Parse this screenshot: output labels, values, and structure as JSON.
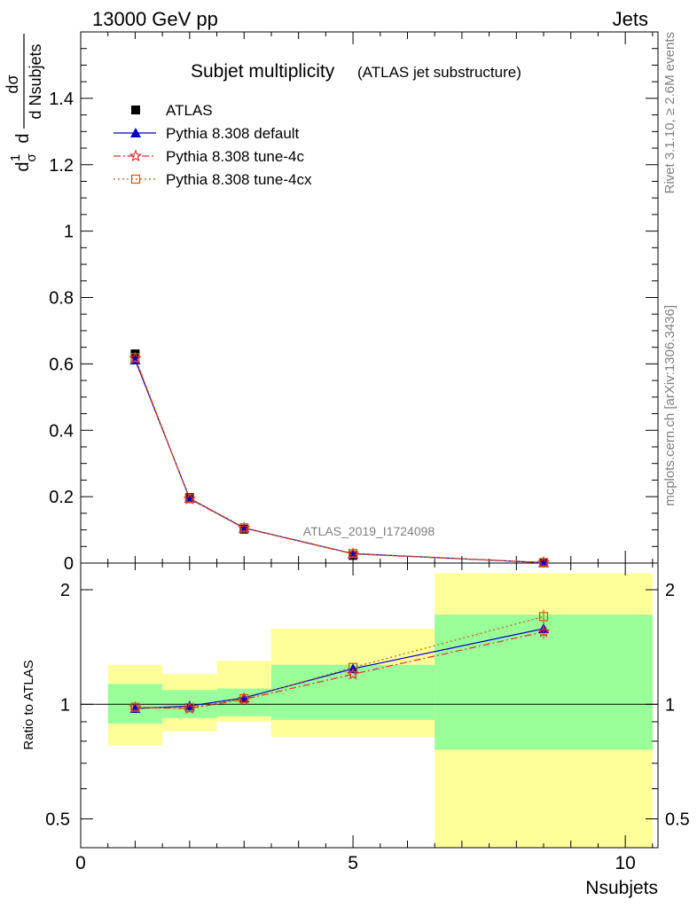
{
  "header": {
    "left": "13000 GeV pp",
    "right": "Jets"
  },
  "title": {
    "main": "Subjet multiplicity",
    "sub": "(ATLAS jet substructure)"
  },
  "watermark": "ATLAS_2019_I1724098",
  "side_text": {
    "rivet": "Rivet 3.1.10, ≥ 2.6M events",
    "mcplots": "mcplots.cern.ch [arXiv:1306.3436]"
  },
  "ylabel_main": {
    "num": "dσ",
    "den": "d Nsubjets",
    "pre_num": "1",
    "pre_den": "σ",
    "d": "d"
  },
  "ylabel_ratio": "Ratio to ATLAS",
  "xlabel": "Nsubjets",
  "main_ticks": [
    "0",
    "0.2",
    "0.4",
    "0.6",
    "0.8",
    "1",
    "1.2",
    "1.4"
  ],
  "ratio_ticks": [
    "0.5",
    "1",
    "2"
  ],
  "x_ticks": [
    "0",
    "5",
    "10"
  ],
  "legend": [
    {
      "label": "ATLAS",
      "color": "#000000",
      "marker": "square-filled"
    },
    {
      "label": "Pythia 8.308 default",
      "color": "#0000cc",
      "marker": "triangle-filled"
    },
    {
      "label": "Pythia 8.308 tune-4c",
      "color": "#e03030",
      "marker": "star"
    },
    {
      "label": "Pythia 8.308 tune-4cx",
      "color": "#cc5500",
      "marker": "square-open"
    }
  ],
  "chart_data": {
    "type": "line",
    "xlabel": "Nsubjets",
    "xlim": [
      0,
      10.6
    ],
    "main_ylim": [
      0,
      1.6
    ],
    "ratio_ylim": [
      0.42,
      2.35
    ],
    "ratio_scale": "log",
    "x": [
      1,
      2,
      3,
      5,
      8.5
    ],
    "bins": [
      [
        0.5,
        1.5
      ],
      [
        1.5,
        2.5
      ],
      [
        2.5,
        3.5
      ],
      [
        3.5,
        6.5
      ],
      [
        6.5,
        10.5
      ]
    ],
    "data": {
      "name": "ATLAS",
      "values": [
        0.63,
        0.197,
        0.102,
        0.023,
        0.0009
      ]
    },
    "series": [
      {
        "name": "Pythia 8.308 default",
        "values": [
          0.612,
          0.195,
          0.106,
          0.0283,
          0.0014
        ],
        "ratio": [
          0.975,
          0.99,
          1.04,
          1.24,
          1.58
        ]
      },
      {
        "name": "Pythia 8.308 tune-4c",
        "values": [
          0.617,
          0.193,
          0.105,
          0.0276,
          0.0014
        ],
        "ratio": [
          0.98,
          0.975,
          1.03,
          1.2,
          1.55
        ]
      },
      {
        "name": "Pythia 8.308 tune-4cx",
        "values": [
          0.619,
          0.194,
          0.106,
          0.0285,
          0.0015
        ],
        "ratio": [
          0.982,
          0.98,
          1.035,
          1.25,
          1.7
        ]
      }
    ],
    "uncertainty_inner": [
      [
        0.89,
        1.13
      ],
      [
        0.92,
        1.09
      ],
      [
        0.93,
        1.1
      ],
      [
        0.91,
        1.27
      ],
      [
        0.76,
        1.72
      ]
    ],
    "uncertainty_outer": [
      [
        0.78,
        1.27
      ],
      [
        0.85,
        1.2
      ],
      [
        0.9,
        1.3
      ],
      [
        0.82,
        1.58
      ],
      [
        0.42,
        2.21
      ]
    ]
  }
}
